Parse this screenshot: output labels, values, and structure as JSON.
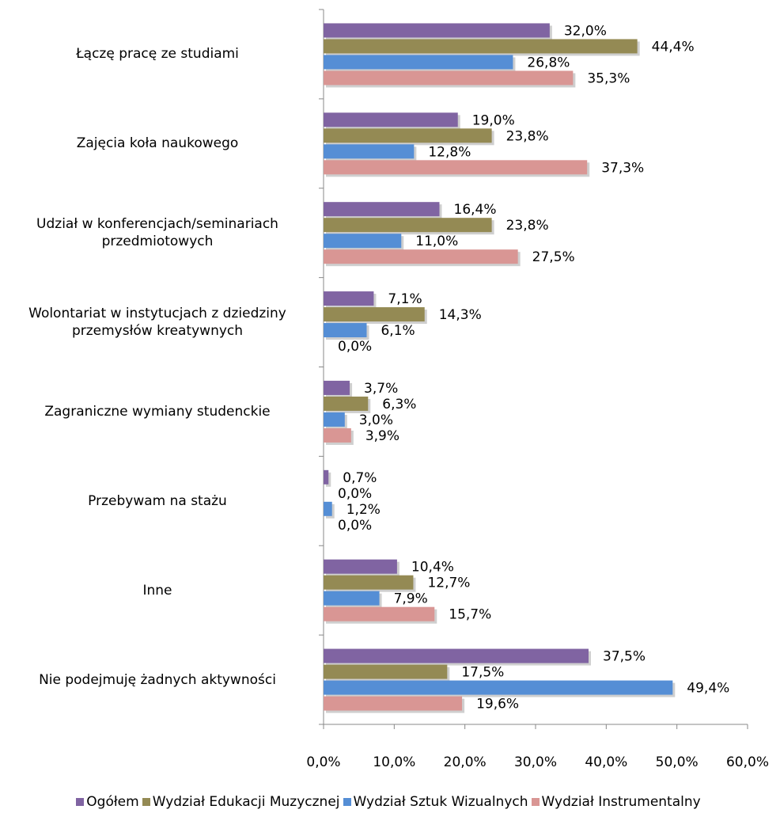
{
  "chart_data": {
    "type": "barh",
    "categories": [
      "Łączę pracę ze studiami",
      "Zajęcia koła naukowego",
      "Udział w konferencjach/seminariach przedmiotowych",
      "Wolontariat w instytucjach z dziedziny przemysłów kreatywnych",
      "Zagraniczne wymiany studenckie",
      "Przebywam na stażu",
      "Inne",
      "Nie podejmuję żadnych aktywności"
    ],
    "series": [
      {
        "name": "Ogółem",
        "color": "#8064a2",
        "values": [
          32.0,
          19.0,
          16.4,
          7.1,
          3.7,
          0.7,
          10.4,
          37.5
        ],
        "value_labels": [
          "32,0%",
          "19,0%",
          "16,4%",
          "7,1%",
          "3,7%",
          "0,7%",
          "10,4%",
          "37,5%"
        ]
      },
      {
        "name": "Wydział Edukacji Muzycznej",
        "color": "#948a54",
        "values": [
          44.4,
          23.8,
          23.8,
          14.3,
          6.3,
          0.0,
          12.7,
          17.5
        ],
        "value_labels": [
          "44,4%",
          "23,8%",
          "23,8%",
          "14,3%",
          "6,3%",
          "0,0%",
          "12,7%",
          "17,5%"
        ]
      },
      {
        "name": "Wydział Sztuk Wizualnych",
        "color": "#558ed5",
        "values": [
          26.8,
          12.8,
          11.0,
          6.1,
          3.0,
          1.2,
          7.9,
          49.4
        ],
        "value_labels": [
          "26,8%",
          "12,8%",
          "11,0%",
          "6,1%",
          "3,0%",
          "1,2%",
          "7,9%",
          "49,4%"
        ]
      },
      {
        "name": "Wydział Instrumentalny",
        "color": "#d99694",
        "values": [
          35.3,
          37.3,
          27.5,
          0.0,
          3.9,
          0.0,
          15.7,
          19.6
        ],
        "value_labels": [
          "35,3%",
          "37,3%",
          "27,5%",
          "0,0%",
          "3,9%",
          "0,0%",
          "15,7%",
          "19,6%"
        ]
      }
    ],
    "xlim": [
      0,
      60
    ],
    "xticks": [
      {
        "value": 0,
        "label": "0,0%"
      },
      {
        "value": 10,
        "label": "10,0%"
      },
      {
        "value": 20,
        "label": "20,0%"
      },
      {
        "value": 30,
        "label": "30,0%"
      },
      {
        "value": 40,
        "label": "40,0%"
      },
      {
        "value": 50,
        "label": "50,0%"
      },
      {
        "value": 60,
        "label": "60,0%"
      }
    ],
    "legend": "bottom"
  }
}
